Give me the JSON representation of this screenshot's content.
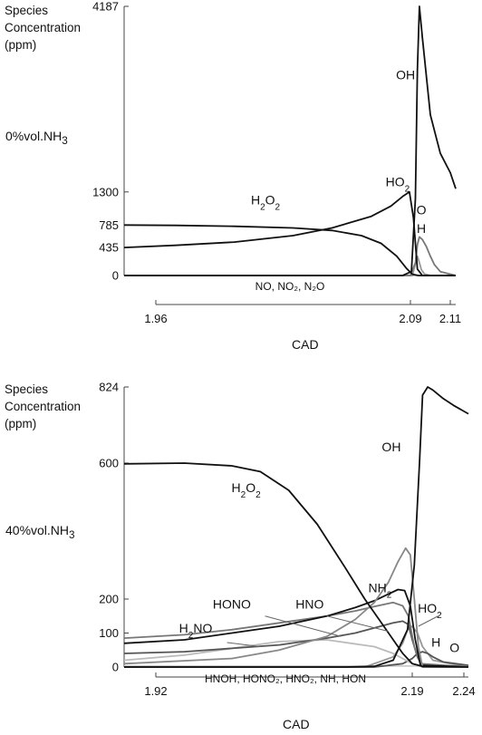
{
  "chart_data": [
    {
      "type": "line",
      "ylabel_lines": [
        "Species",
        "Concentration",
        "(ppm)"
      ],
      "xlabel": "CAD",
      "condition_label": "0%vol.NH",
      "condition_sub": "3",
      "ylim": [
        0,
        4187
      ],
      "xlim": [
        1.96,
        2.11
      ],
      "yticks": [
        "0",
        "435",
        "785",
        "1300",
        "4187"
      ],
      "xticks": [
        "1.96",
        "2.09",
        "2.11"
      ],
      "footnote": "NO, NO₂, N₂O",
      "series": [
        {
          "name": "OH",
          "color": "#111111",
          "x": [
            1.945,
            2.086,
            2.0905,
            2.0925,
            2.0935,
            2.0945,
            2.096,
            2.1,
            2.105,
            2.11,
            2.115
          ],
          "y": [
            0,
            0,
            60,
            1200,
            3200,
            4187,
            3700,
            2500,
            1900,
            1600,
            1350
          ]
        },
        {
          "name": "HO₂",
          "color": "#111111",
          "x": [
            1.945,
            1.97,
            2.0,
            2.03,
            2.05,
            2.07,
            2.08,
            2.086,
            2.0895,
            2.0915,
            2.0935,
            2.096,
            2.115
          ],
          "y": [
            435,
            470,
            520,
            620,
            740,
            920,
            1080,
            1230,
            1300,
            900,
            100,
            0,
            0
          ]
        },
        {
          "name": "H₂O₂",
          "color": "#111111",
          "x": [
            1.945,
            1.97,
            2.0,
            2.03,
            2.05,
            2.065,
            2.075,
            2.083,
            2.088,
            2.091,
            2.094,
            2.115
          ],
          "y": [
            785,
            780,
            765,
            740,
            700,
            620,
            500,
            300,
            110,
            20,
            0,
            0
          ]
        },
        {
          "name": "O",
          "color": "#777777",
          "x": [
            1.945,
            2.09,
            2.0925,
            2.0935,
            2.0945,
            2.096,
            2.098,
            2.1,
            2.102,
            2.105,
            2.115
          ],
          "y": [
            0,
            0,
            200,
            480,
            600,
            560,
            450,
            300,
            170,
            60,
            0
          ]
        },
        {
          "name": "H",
          "color": "#999999",
          "x": [
            1.945,
            2.091,
            2.0925,
            2.0935,
            2.0945,
            2.0955,
            2.097,
            2.1,
            2.115
          ],
          "y": [
            0,
            0,
            180,
            300,
            200,
            90,
            25,
            0,
            0
          ]
        },
        {
          "name": "NO, NO₂, N₂O",
          "color": "#bbbbbb",
          "x": [
            1.945,
            2.115
          ],
          "y": [
            0,
            0
          ]
        }
      ],
      "labels": [
        {
          "text": "OH",
          "x": 2.0875,
          "y": 3050,
          "sub": []
        },
        {
          "text": "HO2",
          "x": 2.0835,
          "y": 1390,
          "sub": [
            2
          ]
        },
        {
          "text": "H2O2",
          "x": 2.016,
          "y": 1110,
          "sub": [
            1,
            3
          ]
        },
        {
          "text": "O",
          "x": 2.0955,
          "y": 955,
          "sub": []
        },
        {
          "text": "H",
          "x": 2.0955,
          "y": 660,
          "sub": []
        }
      ]
    },
    {
      "type": "line",
      "ylabel_lines": [
        "Species",
        "Concentration",
        "(ppm)"
      ],
      "xlabel": "CAD",
      "condition_label": "40%vol.NH",
      "condition_sub": "3",
      "ylim": [
        0,
        824
      ],
      "xlim": [
        1.92,
        2.24
      ],
      "yticks": [
        "0",
        "100",
        "200",
        "600",
        "824"
      ],
      "xticks": [
        "1.92",
        "2.19",
        "2.24"
      ],
      "footnote": "HNOH, HONO₂, HNO₂, NH, HON",
      "series": [
        {
          "name": "OH",
          "color": "#111111",
          "x": [
            1.91,
            2.12,
            2.15,
            2.17,
            2.185,
            2.192,
            2.197,
            2.2,
            2.205,
            2.21,
            2.22,
            2.23,
            2.245
          ],
          "y": [
            0,
            0,
            2,
            20,
            110,
            300,
            600,
            800,
            824,
            815,
            790,
            770,
            745
          ]
        },
        {
          "name": "H₂O₂",
          "color": "#111111",
          "x": [
            1.91,
            1.95,
            2.0,
            2.03,
            2.06,
            2.09,
            2.12,
            2.14,
            2.16,
            2.18,
            2.19,
            2.2,
            2.245
          ],
          "y": [
            598,
            600,
            592,
            575,
            520,
            420,
            290,
            200,
            120,
            40,
            10,
            2,
            0
          ]
        },
        {
          "name": "NH₂",
          "color": "#888888",
          "x": [
            1.91,
            2.0,
            2.05,
            2.1,
            2.13,
            2.15,
            2.165,
            2.175,
            2.183,
            2.188,
            2.192,
            2.196,
            2.2,
            2.245
          ],
          "y": [
            10,
            25,
            50,
            90,
            140,
            190,
            250,
            310,
            350,
            330,
            200,
            60,
            0,
            0
          ]
        },
        {
          "name": "HO₂",
          "color": "#111111",
          "x": [
            1.91,
            1.95,
            2.0,
            2.05,
            2.1,
            2.13,
            2.15,
            2.165,
            2.175,
            2.182,
            2.188,
            2.193,
            2.198,
            2.245
          ],
          "y": [
            70,
            80,
            100,
            120,
            150,
            175,
            195,
            215,
            228,
            225,
            180,
            80,
            5,
            0
          ]
        },
        {
          "name": "HONO",
          "color": "#777777",
          "x": [
            1.91,
            1.95,
            2.0,
            2.05,
            2.1,
            2.13,
            2.15,
            2.17,
            2.18,
            2.186,
            2.192,
            2.198,
            2.245
          ],
          "y": [
            85,
            95,
            110,
            130,
            150,
            165,
            178,
            190,
            180,
            150,
            60,
            10,
            0
          ]
        },
        {
          "name": "HNO",
          "color": "#555555",
          "x": [
            1.91,
            1.95,
            2.0,
            2.05,
            2.1,
            2.13,
            2.15,
            2.17,
            2.18,
            2.186,
            2.19,
            2.195,
            2.2,
            2.245
          ],
          "y": [
            40,
            45,
            55,
            65,
            85,
            100,
            115,
            130,
            135,
            125,
            80,
            30,
            0,
            0
          ]
        },
        {
          "name": "H₂NO",
          "color": "#bbbbbb",
          "x": [
            1.91,
            1.95,
            2.0,
            2.05,
            2.1,
            2.15,
            2.17,
            2.19,
            2.2,
            2.245
          ],
          "y": [
            20,
            35,
            55,
            75,
            80,
            60,
            40,
            10,
            0,
            0
          ]
        },
        {
          "name": "H",
          "color": "#555555",
          "x": [
            1.91,
            2.15,
            2.18,
            2.19,
            2.195,
            2.2,
            2.205,
            2.21,
            2.22,
            2.245
          ],
          "y": [
            0,
            0,
            10,
            25,
            40,
            45,
            40,
            30,
            15,
            5
          ]
        },
        {
          "name": "O",
          "color": "#999999",
          "x": [
            1.91,
            2.14,
            2.17,
            2.18,
            2.185,
            2.19,
            2.195,
            2.2,
            2.21,
            2.245
          ],
          "y": [
            0,
            0,
            30,
            70,
            110,
            120,
            100,
            60,
            20,
            0
          ]
        },
        {
          "name": "HNOH, HONO₂, HNO₂, NH, HON",
          "color": "#cccccc",
          "x": [
            1.91,
            2.245
          ],
          "y": [
            3,
            3
          ]
        }
      ],
      "labels": [
        {
          "text": "OH",
          "x": 2.168,
          "y": 635,
          "sub": []
        },
        {
          "text": "H2O2",
          "x": 2.015,
          "y": 515,
          "sub": [
            1,
            3
          ]
        },
        {
          "text": "NH2",
          "x": 2.156,
          "y": 220,
          "sub": [
            2
          ]
        },
        {
          "text": "HO2",
          "x": 2.207,
          "y": 160,
          "sub": [
            2
          ]
        },
        {
          "text": "HONO",
          "x": 2.0,
          "y": 172,
          "sub": []
        },
        {
          "text": "HNO",
          "x": 2.082,
          "y": 172,
          "sub": []
        },
        {
          "text": "H2NO",
          "x": 1.962,
          "y": 102,
          "sub": [
            1
          ]
        },
        {
          "text": "H",
          "x": 2.213,
          "y": 60,
          "sub": []
        },
        {
          "text": "O",
          "x": 2.231,
          "y": 44,
          "sub": []
        }
      ]
    }
  ]
}
